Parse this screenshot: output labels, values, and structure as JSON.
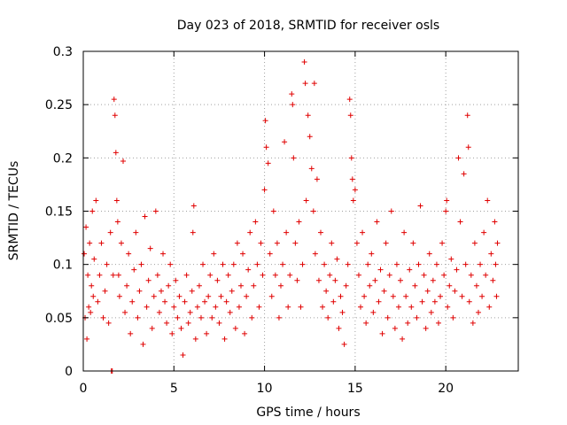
{
  "chart_data": {
    "type": "scatter",
    "title": "Day 023 of 2018, SRMTID for receiver osls",
    "xlabel": "GPS time / hours",
    "ylabel": "SRMTID / TECUs",
    "xlim": [
      0,
      24
    ],
    "ylim": [
      0,
      0.3
    ],
    "x_ticks": [
      0,
      5,
      10,
      15,
      20
    ],
    "x_tick_labels": [
      "0",
      "5",
      "10",
      "15",
      "20"
    ],
    "y_ticks": [
      0,
      0.05,
      0.1,
      0.15,
      0.2,
      0.25,
      0.3
    ],
    "y_tick_labels": [
      "0",
      "0.05",
      "0.1",
      "0.15",
      "0.2",
      "0.25",
      "0.3"
    ],
    "grid": true,
    "marker": "plus",
    "color": "#e00000",
    "series": [
      {
        "name": "SRMTID",
        "points": [
          [
            0.05,
            0.11
          ],
          [
            0.1,
            0.05
          ],
          [
            0.15,
            0.135
          ],
          [
            0.2,
            0.03
          ],
          [
            0.25,
            0.09
          ],
          [
            0.3,
            0.06
          ],
          [
            0.35,
            0.12
          ],
          [
            0.4,
            0.055
          ],
          [
            0.45,
            0.08
          ],
          [
            0.5,
            0.15
          ],
          [
            0.55,
            0.07
          ],
          [
            0.6,
            0.105
          ],
          [
            0.7,
            0.16
          ],
          [
            0.8,
            0.065
          ],
          [
            0.9,
            0.09
          ],
          [
            1.0,
            0.12
          ],
          [
            1.1,
            0.05
          ],
          [
            1.2,
            0.075
          ],
          [
            1.3,
            0.1
          ],
          [
            1.4,
            0.045
          ],
          [
            1.5,
            0.13
          ],
          [
            1.55,
            0.0
          ],
          [
            1.6,
            0.0
          ],
          [
            1.65,
            0.09
          ],
          [
            1.7,
            0.255
          ],
          [
            1.75,
            0.24
          ],
          [
            1.8,
            0.205
          ],
          [
            1.85,
            0.16
          ],
          [
            1.9,
            0.14
          ],
          [
            1.95,
            0.09
          ],
          [
            2.0,
            0.07
          ],
          [
            2.1,
            0.12
          ],
          [
            2.2,
            0.197
          ],
          [
            2.3,
            0.055
          ],
          [
            2.4,
            0.08
          ],
          [
            2.5,
            0.11
          ],
          [
            2.6,
            0.035
          ],
          [
            2.7,
            0.065
          ],
          [
            2.8,
            0.095
          ],
          [
            2.9,
            0.13
          ],
          [
            3.0,
            0.05
          ],
          [
            3.1,
            0.075
          ],
          [
            3.2,
            0.1
          ],
          [
            3.3,
            0.025
          ],
          [
            3.4,
            0.145
          ],
          [
            3.5,
            0.06
          ],
          [
            3.6,
            0.085
          ],
          [
            3.7,
            0.115
          ],
          [
            3.8,
            0.04
          ],
          [
            3.9,
            0.07
          ],
          [
            4.0,
            0.15
          ],
          [
            4.1,
            0.09
          ],
          [
            4.2,
            0.055
          ],
          [
            4.3,
            0.075
          ],
          [
            4.4,
            0.11
          ],
          [
            4.5,
            0.065
          ],
          [
            4.6,
            0.045
          ],
          [
            4.7,
            0.08
          ],
          [
            4.8,
            0.1
          ],
          [
            4.9,
            0.035
          ],
          [
            5.0,
            0.06
          ],
          [
            5.1,
            0.085
          ],
          [
            5.2,
            0.05
          ],
          [
            5.3,
            0.07
          ],
          [
            5.4,
            0.04
          ],
          [
            5.5,
            0.015
          ],
          [
            5.6,
            0.065
          ],
          [
            5.7,
            0.09
          ],
          [
            5.8,
            0.045
          ],
          [
            5.9,
            0.055
          ],
          [
            6.0,
            0.075
          ],
          [
            6.05,
            0.13
          ],
          [
            6.1,
            0.155
          ],
          [
            6.2,
            0.03
          ],
          [
            6.3,
            0.06
          ],
          [
            6.4,
            0.08
          ],
          [
            6.5,
            0.05
          ],
          [
            6.6,
            0.1
          ],
          [
            6.7,
            0.065
          ],
          [
            6.8,
            0.035
          ],
          [
            6.9,
            0.07
          ],
          [
            7.0,
            0.09
          ],
          [
            7.1,
            0.05
          ],
          [
            7.2,
            0.11
          ],
          [
            7.3,
            0.06
          ],
          [
            7.4,
            0.085
          ],
          [
            7.5,
            0.045
          ],
          [
            7.6,
            0.07
          ],
          [
            7.7,
            0.1
          ],
          [
            7.8,
            0.03
          ],
          [
            7.9,
            0.065
          ],
          [
            8.0,
            0.09
          ],
          [
            8.1,
            0.055
          ],
          [
            8.2,
            0.075
          ],
          [
            8.3,
            0.1
          ],
          [
            8.4,
            0.04
          ],
          [
            8.5,
            0.12
          ],
          [
            8.6,
            0.06
          ],
          [
            8.7,
            0.08
          ],
          [
            8.8,
            0.11
          ],
          [
            8.9,
            0.035
          ],
          [
            9.0,
            0.07
          ],
          [
            9.1,
            0.095
          ],
          [
            9.2,
            0.13
          ],
          [
            9.3,
            0.05
          ],
          [
            9.4,
            0.08
          ],
          [
            9.5,
            0.14
          ],
          [
            9.6,
            0.1
          ],
          [
            9.7,
            0.06
          ],
          [
            9.8,
            0.12
          ],
          [
            9.9,
            0.09
          ],
          [
            10.0,
            0.17
          ],
          [
            10.05,
            0.235
          ],
          [
            10.1,
            0.21
          ],
          [
            10.2,
            0.195
          ],
          [
            10.3,
            0.11
          ],
          [
            10.4,
            0.07
          ],
          [
            10.5,
            0.15
          ],
          [
            10.6,
            0.09
          ],
          [
            10.7,
            0.12
          ],
          [
            10.8,
            0.05
          ],
          [
            10.9,
            0.08
          ],
          [
            11.0,
            0.1
          ],
          [
            11.1,
            0.215
          ],
          [
            11.2,
            0.13
          ],
          [
            11.3,
            0.06
          ],
          [
            11.4,
            0.09
          ],
          [
            11.5,
            0.26
          ],
          [
            11.55,
            0.25
          ],
          [
            11.6,
            0.2
          ],
          [
            11.7,
            0.12
          ],
          [
            11.8,
            0.085
          ],
          [
            11.9,
            0.14
          ],
          [
            12.0,
            0.06
          ],
          [
            12.1,
            0.1
          ],
          [
            12.2,
            0.29
          ],
          [
            12.25,
            0.27
          ],
          [
            12.3,
            0.16
          ],
          [
            12.4,
            0.24
          ],
          [
            12.5,
            0.22
          ],
          [
            12.6,
            0.19
          ],
          [
            12.7,
            0.15
          ],
          [
            12.75,
            0.27
          ],
          [
            12.8,
            0.11
          ],
          [
            12.9,
            0.18
          ],
          [
            13.0,
            0.085
          ],
          [
            13.1,
            0.13
          ],
          [
            13.2,
            0.06
          ],
          [
            13.3,
            0.1
          ],
          [
            13.4,
            0.075
          ],
          [
            13.5,
            0.05
          ],
          [
            13.6,
            0.09
          ],
          [
            13.7,
            0.12
          ],
          [
            13.8,
            0.065
          ],
          [
            13.9,
            0.085
          ],
          [
            14.0,
            0.105
          ],
          [
            14.1,
            0.04
          ],
          [
            14.2,
            0.07
          ],
          [
            14.3,
            0.055
          ],
          [
            14.4,
            0.025
          ],
          [
            14.5,
            0.08
          ],
          [
            14.6,
            0.1
          ],
          [
            14.7,
            0.255
          ],
          [
            14.75,
            0.24
          ],
          [
            14.8,
            0.2
          ],
          [
            14.85,
            0.18
          ],
          [
            14.9,
            0.16
          ],
          [
            15.0,
            0.17
          ],
          [
            15.1,
            0.12
          ],
          [
            15.2,
            0.09
          ],
          [
            15.3,
            0.06
          ],
          [
            15.4,
            0.13
          ],
          [
            15.5,
            0.07
          ],
          [
            15.6,
            0.045
          ],
          [
            15.7,
            0.1
          ],
          [
            15.8,
            0.08
          ],
          [
            15.9,
            0.11
          ],
          [
            16.0,
            0.055
          ],
          [
            16.1,
            0.085
          ],
          [
            16.2,
            0.14
          ],
          [
            16.3,
            0.065
          ],
          [
            16.4,
            0.095
          ],
          [
            16.5,
            0.035
          ],
          [
            16.6,
            0.075
          ],
          [
            16.7,
            0.12
          ],
          [
            16.8,
            0.05
          ],
          [
            16.9,
            0.09
          ],
          [
            17.0,
            0.15
          ],
          [
            17.1,
            0.07
          ],
          [
            17.2,
            0.04
          ],
          [
            17.3,
            0.1
          ],
          [
            17.4,
            0.06
          ],
          [
            17.5,
            0.085
          ],
          [
            17.6,
            0.03
          ],
          [
            17.7,
            0.13
          ],
          [
            17.8,
            0.07
          ],
          [
            17.9,
            0.045
          ],
          [
            18.0,
            0.095
          ],
          [
            18.1,
            0.06
          ],
          [
            18.2,
            0.12
          ],
          [
            18.3,
            0.08
          ],
          [
            18.4,
            0.05
          ],
          [
            18.5,
            0.1
          ],
          [
            18.6,
            0.155
          ],
          [
            18.7,
            0.065
          ],
          [
            18.8,
            0.09
          ],
          [
            18.9,
            0.04
          ],
          [
            19.0,
            0.075
          ],
          [
            19.1,
            0.11
          ],
          [
            19.2,
            0.055
          ],
          [
            19.3,
            0.085
          ],
          [
            19.4,
            0.065
          ],
          [
            19.5,
            0.1
          ],
          [
            19.6,
            0.045
          ],
          [
            19.7,
            0.07
          ],
          [
            19.8,
            0.12
          ],
          [
            19.9,
            0.09
          ],
          [
            20.0,
            0.15
          ],
          [
            20.05,
            0.16
          ],
          [
            20.1,
            0.06
          ],
          [
            20.2,
            0.08
          ],
          [
            20.3,
            0.105
          ],
          [
            20.4,
            0.05
          ],
          [
            20.5,
            0.075
          ],
          [
            20.6,
            0.095
          ],
          [
            20.7,
            0.2
          ],
          [
            20.8,
            0.14
          ],
          [
            20.9,
            0.07
          ],
          [
            21.0,
            0.185
          ],
          [
            21.1,
            0.1
          ],
          [
            21.2,
            0.24
          ],
          [
            21.25,
            0.21
          ],
          [
            21.3,
            0.065
          ],
          [
            21.4,
            0.09
          ],
          [
            21.5,
            0.045
          ],
          [
            21.6,
            0.12
          ],
          [
            21.7,
            0.08
          ],
          [
            21.8,
            0.055
          ],
          [
            21.9,
            0.1
          ],
          [
            22.0,
            0.07
          ],
          [
            22.1,
            0.13
          ],
          [
            22.2,
            0.09
          ],
          [
            22.3,
            0.16
          ],
          [
            22.4,
            0.06
          ],
          [
            22.5,
            0.11
          ],
          [
            22.6,
            0.085
          ],
          [
            22.7,
            0.14
          ],
          [
            22.75,
            0.1
          ],
          [
            22.8,
            0.07
          ],
          [
            22.85,
            0.12
          ]
        ]
      }
    ]
  }
}
